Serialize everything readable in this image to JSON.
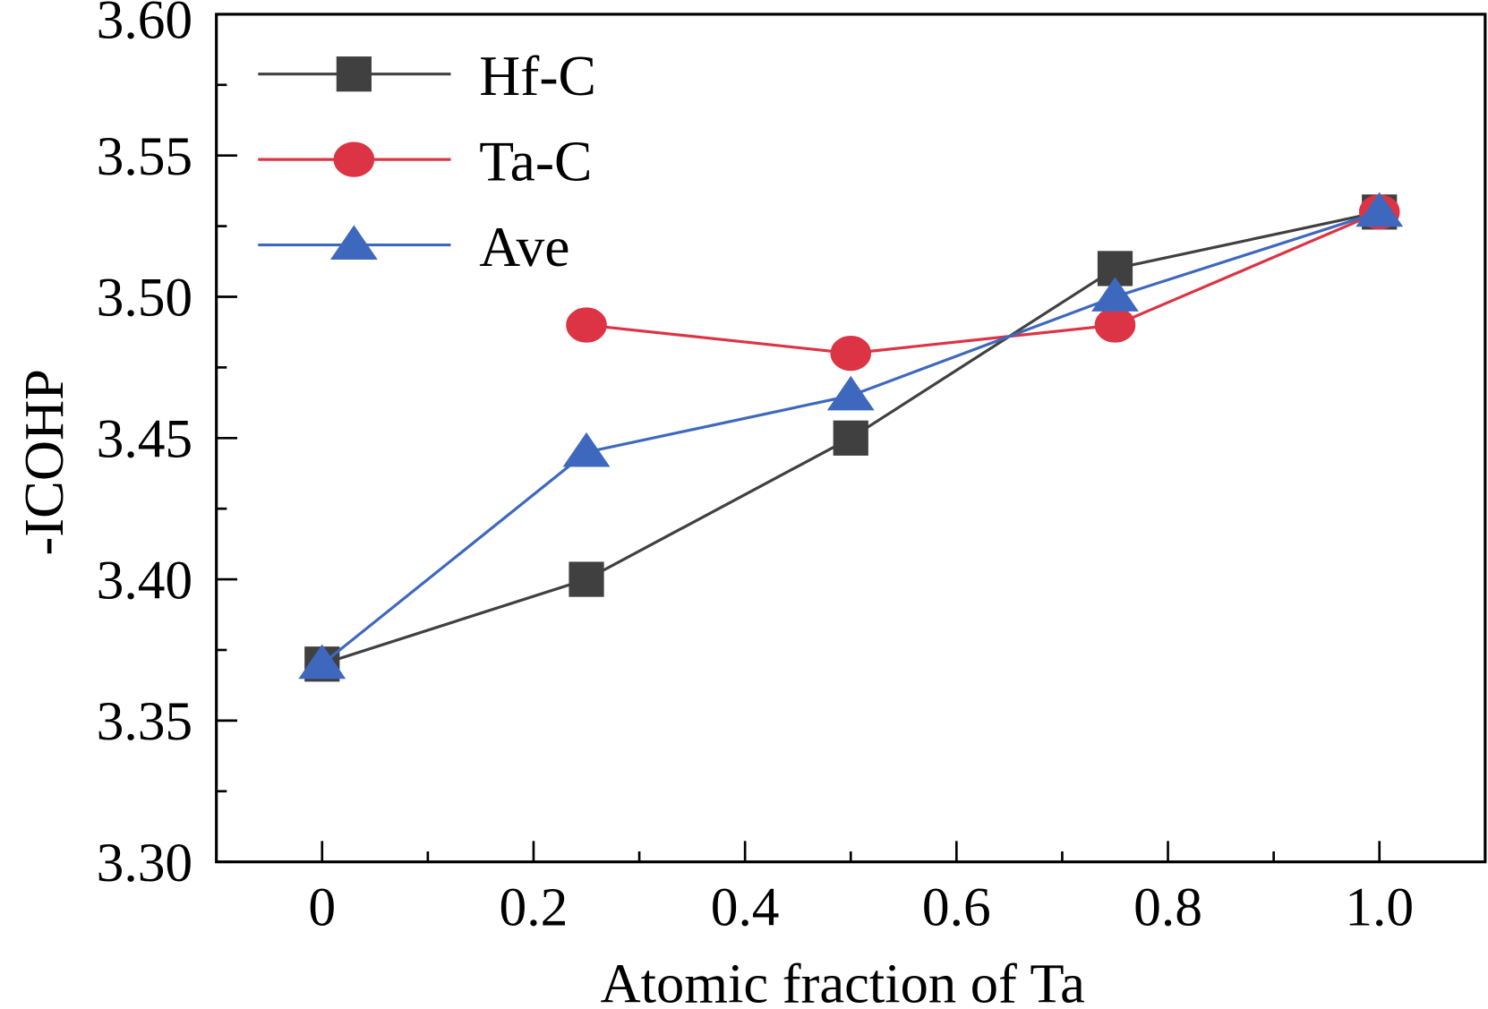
{
  "chart_data": {
    "type": "line",
    "xlabel": "Atomic fraction of Ta",
    "ylabel": "-ICOHP",
    "xlim": [
      -0.1,
      1.1
    ],
    "ylim": [
      3.3,
      3.6
    ],
    "xticks": [
      0,
      0.2,
      0.4,
      0.6,
      0.8,
      1.0
    ],
    "xtick_labels": [
      "0",
      "0.2",
      "0.4",
      "0.6",
      "0.8",
      "1.0"
    ],
    "yticks": [
      3.3,
      3.35,
      3.4,
      3.45,
      3.5,
      3.55,
      3.6
    ],
    "ytick_labels": [
      "3.30",
      "3.35",
      "3.40",
      "3.45",
      "3.50",
      "3.55",
      "3.60"
    ],
    "grid": false,
    "legend_position": "top-left",
    "series": [
      {
        "name": "Hf-C",
        "color": "#404040",
        "marker": "square",
        "x": [
          0,
          0.25,
          0.5,
          0.75,
          1.0
        ],
        "y": [
          3.37,
          3.4,
          3.45,
          3.51,
          3.53
        ]
      },
      {
        "name": "Ta-C",
        "color": "#dc3444",
        "marker": "circle",
        "x": [
          0.25,
          0.5,
          0.75,
          1.0
        ],
        "y": [
          3.49,
          3.48,
          3.49,
          3.53
        ]
      },
      {
        "name": "Ave",
        "color": "#3e68be",
        "marker": "triangle",
        "x": [
          0,
          0.25,
          0.5,
          0.75,
          1.0
        ],
        "y": [
          3.37,
          3.445,
          3.465,
          3.5,
          3.53
        ]
      }
    ]
  }
}
